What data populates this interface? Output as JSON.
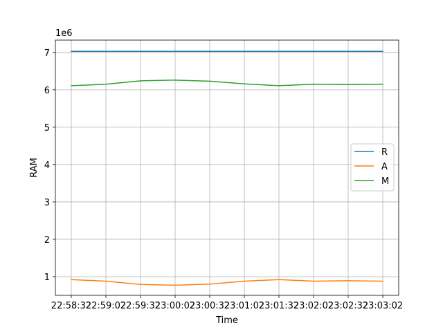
{
  "chart_data": {
    "type": "line",
    "xlabel": "Time",
    "ylabel": "RAM",
    "offset_label": "1e6",
    "categories": [
      "22:58:32",
      "22:59:02",
      "22:59:32",
      "23:00:02",
      "23:00:32",
      "23:01:02",
      "23:01:32",
      "23:02:02",
      "23:02:32",
      "23:03:02"
    ],
    "yticks": [
      1,
      2,
      3,
      4,
      5,
      6,
      7
    ],
    "ylim": [
      0.5,
      7.33
    ],
    "grid": true,
    "legend_position": "center-right",
    "series": [
      {
        "name": "R",
        "color": "#1f77b4",
        "values": [
          7.03,
          7.03,
          7.03,
          7.03,
          7.03,
          7.03,
          7.03,
          7.03,
          7.03,
          7.03
        ]
      },
      {
        "name": "A",
        "color": "#ff7f0e",
        "values": [
          0.92,
          0.88,
          0.79,
          0.77,
          0.8,
          0.88,
          0.92,
          0.88,
          0.89,
          0.88
        ]
      },
      {
        "name": "M",
        "color": "#2ca02c",
        "values": [
          6.11,
          6.15,
          6.24,
          6.26,
          6.23,
          6.16,
          6.11,
          6.15,
          6.14,
          6.15
        ]
      }
    ]
  }
}
